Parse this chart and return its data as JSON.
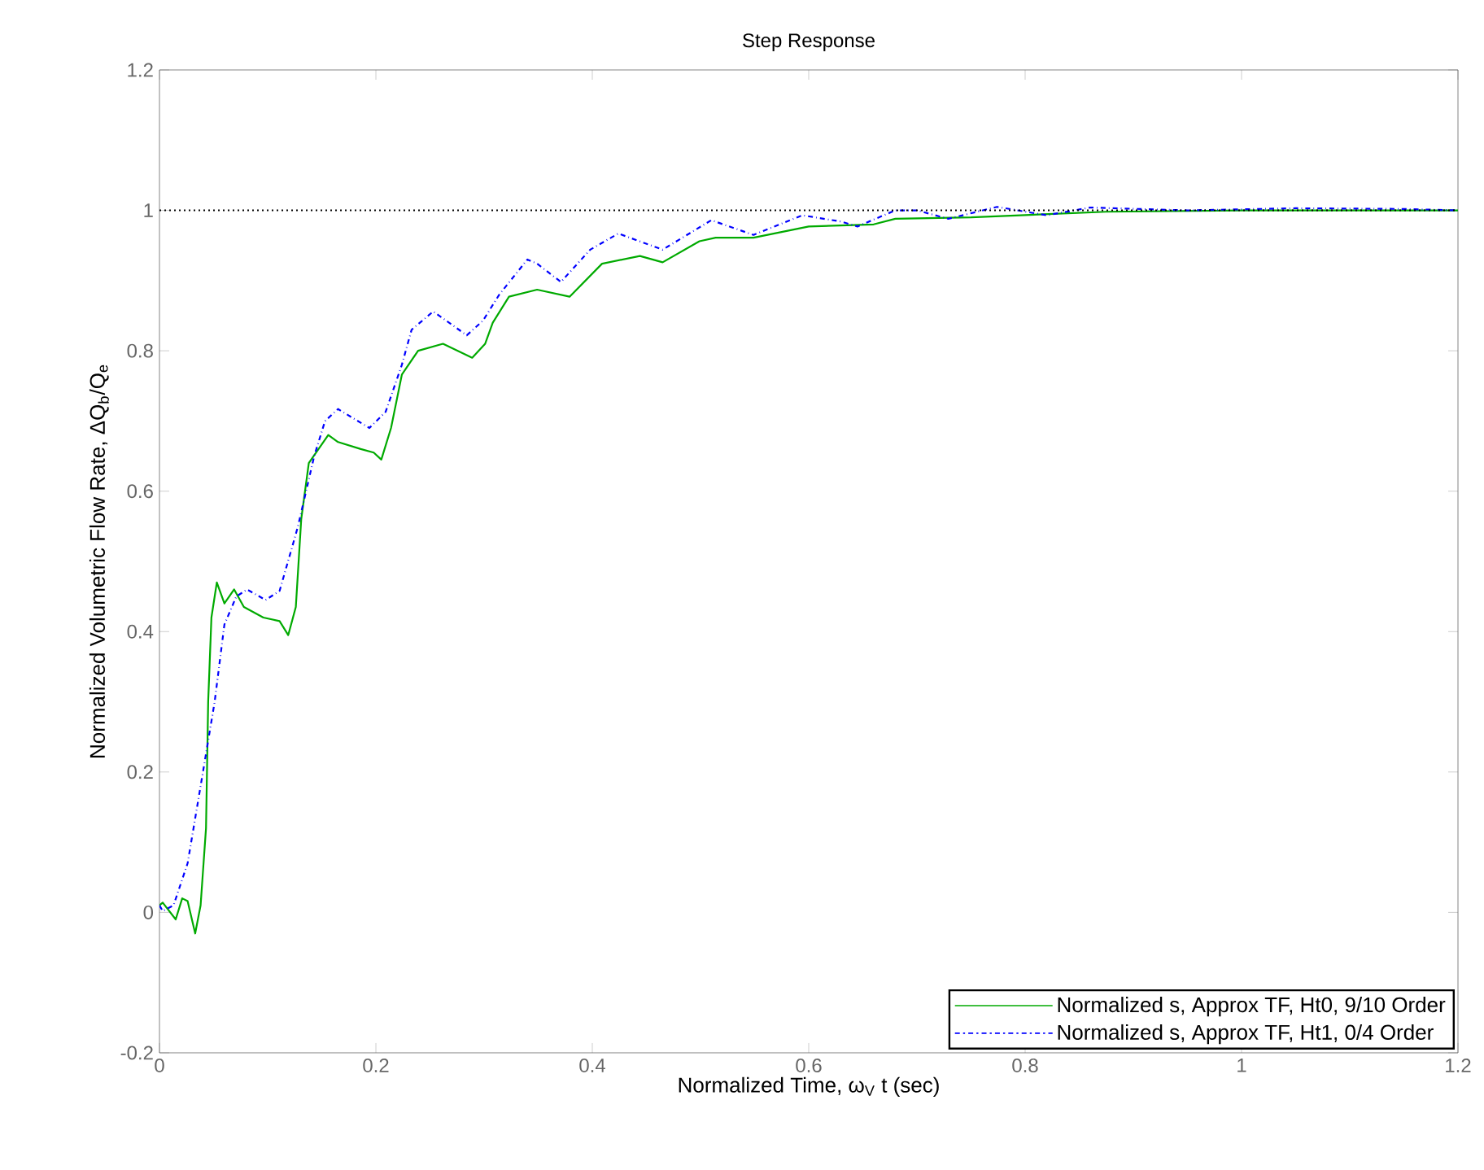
{
  "chart_data": {
    "type": "line",
    "title": "Step Response",
    "xlabel": "Normalized Time, ω$_{V}$ t (sec)",
    "ylabel": "Normalized Volumetric Flow Rate, ΔQ$_{b}$/Q$_{e}$",
    "xlim": [
      0,
      1.2
    ],
    "ylim": [
      -0.2,
      1.2
    ],
    "xticks": [
      0,
      0.2,
      0.4,
      0.6,
      0.8,
      1,
      1.2
    ],
    "yticks": [
      -0.2,
      0,
      0.2,
      0.4,
      0.6,
      0.8,
      1,
      1.2
    ],
    "grid": false,
    "legend": "bottom right",
    "ref_lines": [
      {
        "axis": "y",
        "value": 1,
        "color": "#000000",
        "line_style": "dotted"
      }
    ],
    "series": [
      {
        "name": "Normalized s, Approx TF, Ht0, 9/10 Order",
        "color": "#00aa00",
        "line_style": "solid",
        "x": [
          0,
          0.003,
          0.015,
          0.021,
          0.026,
          0.033,
          0.038,
          0.043,
          0.045,
          0.048,
          0.053,
          0.06,
          0.069,
          0.078,
          0.096,
          0.111,
          0.119,
          0.126,
          0.131,
          0.138,
          0.156,
          0.165,
          0.186,
          0.198,
          0.205,
          0.214,
          0.224,
          0.239,
          0.262,
          0.289,
          0.301,
          0.308,
          0.323,
          0.349,
          0.379,
          0.409,
          0.444,
          0.465,
          0.499,
          0.514,
          0.549,
          0.6,
          0.66,
          0.68,
          0.75,
          0.826,
          0.875,
          1.0,
          1.2
        ],
        "values": [
          0.01,
          0.014,
          -0.01,
          0.02,
          0.016,
          -0.03,
          0.01,
          0.12,
          0.3,
          0.42,
          0.47,
          0.44,
          0.46,
          0.435,
          0.42,
          0.415,
          0.395,
          0.435,
          0.56,
          0.64,
          0.68,
          0.67,
          0.66,
          0.655,
          0.645,
          0.69,
          0.766,
          0.8,
          0.81,
          0.79,
          0.81,
          0.84,
          0.877,
          0.887,
          0.877,
          0.924,
          0.935,
          0.926,
          0.956,
          0.961,
          0.961,
          0.977,
          0.98,
          0.988,
          0.99,
          0.995,
          0.998,
          1.0,
          1.0
        ]
      },
      {
        "name": "Normalized s, Approx TF, Ht1, 0/4 Order",
        "color": "#0000ff",
        "line_style": "dashdot",
        "x": [
          0,
          0.003,
          0.013,
          0.026,
          0.033,
          0.043,
          0.051,
          0.06,
          0.071,
          0.081,
          0.098,
          0.111,
          0.124,
          0.128,
          0.143,
          0.153,
          0.165,
          0.194,
          0.209,
          0.224,
          0.233,
          0.253,
          0.284,
          0.299,
          0.314,
          0.34,
          0.349,
          0.371,
          0.398,
          0.424,
          0.465,
          0.51,
          0.549,
          0.594,
          0.63,
          0.645,
          0.68,
          0.7,
          0.729,
          0.774,
          0.82,
          0.86,
          0.95,
          1.05,
          1.15,
          1.2
        ],
        "values": [
          0.01,
          0.002,
          0.01,
          0.07,
          0.134,
          0.226,
          0.3,
          0.41,
          0.45,
          0.46,
          0.445,
          0.458,
          0.528,
          0.55,
          0.65,
          0.7,
          0.717,
          0.69,
          0.713,
          0.78,
          0.83,
          0.856,
          0.822,
          0.843,
          0.88,
          0.93,
          0.924,
          0.898,
          0.944,
          0.967,
          0.944,
          0.986,
          0.965,
          0.993,
          0.984,
          0.977,
          1.0,
          1.0,
          0.988,
          1.005,
          0.993,
          1.004,
          1.0,
          1.003,
          1.002,
          1.0
        ]
      }
    ]
  }
}
